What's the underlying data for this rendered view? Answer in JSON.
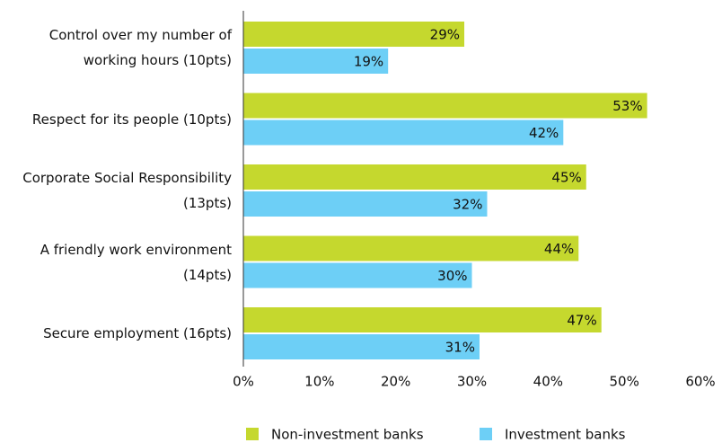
{
  "chart_data": {
    "type": "bar",
    "orientation": "horizontal",
    "categories": [
      "Control over my number of\nworking hours (10pts)",
      "Respect for its people (10pts)",
      "Corporate Social Responsibility\n(13pts)",
      "A friendly work environment\n(14pts)",
      "Secure employment (16pts)"
    ],
    "series": [
      {
        "name": "Non-investment banks",
        "color": "#c5d82e",
        "values": [
          29,
          53,
          45,
          44,
          47
        ],
        "value_labels": [
          "29%",
          "53%",
          "45%",
          "44%",
          "47%"
        ]
      },
      {
        "name": "Investment banks",
        "color": "#6dcff6",
        "values": [
          19,
          42,
          32,
          30,
          31
        ],
        "value_labels": [
          "19%",
          "42%",
          "32%",
          "30%",
          "31%"
        ]
      }
    ],
    "xlim": [
      0,
      60
    ],
    "xticks": [
      {
        "value": 0,
        "label": "0%"
      },
      {
        "value": 10,
        "label": "10%"
      },
      {
        "value": 20,
        "label": "20%"
      },
      {
        "value": 30,
        "label": "30%"
      },
      {
        "value": 40,
        "label": "40%"
      },
      {
        "value": 50,
        "label": "50%"
      },
      {
        "value": 60,
        "label": "60%"
      }
    ],
    "legend": "bottom"
  }
}
